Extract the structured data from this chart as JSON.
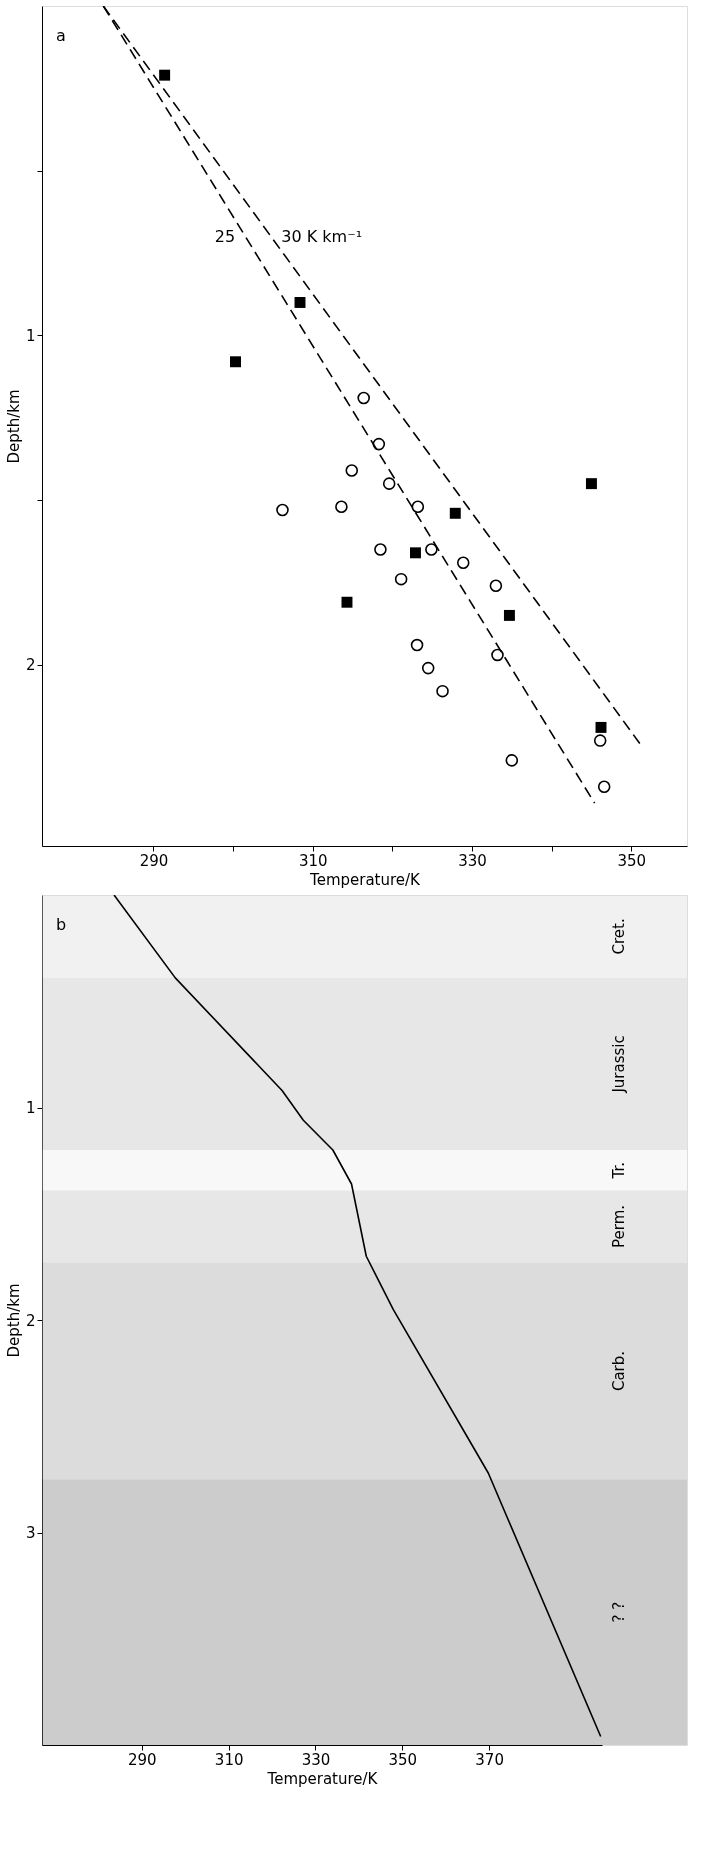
{
  "chart_data": [
    {
      "type": "scatter",
      "xlabel": "Temperature/K",
      "ylabel": "Depth/km",
      "xlim": [
        276,
        357
      ],
      "ylim": [
        2.55,
        0
      ],
      "xticks": [
        290,
        {
          "value": 300,
          "label": null
        },
        310,
        {
          "value": 320,
          "label": null
        },
        330,
        {
          "value": 340,
          "label": null
        },
        350
      ],
      "yticks": [
        {
          "value": 0.5,
          "label": null
        },
        1,
        {
          "value": 1.5,
          "label": null
        },
        2
      ],
      "grid": false,
      "legend": false,
      "annotations": [
        "a",
        {
          "text": "25",
          "x": 301.5,
          "y": 0.7
        },
        {
          "text": "30 K km⁻¹",
          "x": 304.8,
          "y": 0.7
        }
      ],
      "series": [
        {
          "marker": "square",
          "color": "#000000",
          "x": [
            291.4,
            308.4,
            300.3,
            345.0,
            327.9,
            322.9,
            314.3,
            334.7,
            346.2
          ],
          "values": [
            0.21,
            0.9,
            1.08,
            1.45,
            1.54,
            1.66,
            1.81,
            1.85,
            2.19
          ]
        },
        {
          "marker": "circle",
          "color": "#000000",
          "x": [
            316.4,
            318.3,
            314.9,
            319.6,
            306.2,
            313.6,
            323.2,
            318.5,
            324.9,
            328.9,
            321.1,
            333.0,
            323.1,
            333.2,
            324.5,
            326.3,
            346.1,
            335.0,
            346.6
          ],
          "values": [
            1.19,
            1.33,
            1.41,
            1.45,
            1.53,
            1.52,
            1.52,
            1.65,
            1.65,
            1.69,
            1.74,
            1.76,
            1.94,
            1.97,
            2.01,
            2.08,
            2.23,
            2.29,
            2.37
          ]
        },
        {
          "type": "line",
          "line_style": "dashed",
          "color": "#000000",
          "x": [
            283.7,
            345.4
          ],
          "values": [
            0,
            2.42
          ]
        },
        {
          "type": "line",
          "line_style": "dashed",
          "color": "#000000",
          "x": [
            283.7,
            351.1
          ],
          "values": [
            0,
            2.24
          ]
        }
      ]
    },
    {
      "type": "line",
      "xlabel": "Temperature/K",
      "ylabel": "Depth/km",
      "xlim": [
        267,
        396
      ],
      "ylim": [
        4,
        0
      ],
      "xticks": [
        290,
        310,
        330,
        350,
        370
      ],
      "yticks": [
        1,
        2,
        3
      ],
      "grid": false,
      "legend": false,
      "annotations": [
        "b"
      ],
      "series": [
        {
          "line_style": "solid",
          "color": "#000000",
          "x": [
            283.6,
            297.7,
            322.3,
            327.2,
            334.0,
            338.3,
            341.7,
            347.9,
            369.8,
            395.7
          ],
          "values": [
            0,
            0.39,
            0.92,
            1.06,
            1.2,
            1.36,
            1.7,
            1.95,
            2.72,
            3.96
          ]
        }
      ],
      "bands": [
        {
          "axis": "y",
          "from": 0,
          "to": 0.39,
          "label": "Cret.",
          "color": "#dcdcdc"
        },
        {
          "axis": "y",
          "from": 0.39,
          "to": 1.2,
          "label": "Jurassic",
          "color": "#c4c4c4"
        },
        {
          "axis": "y",
          "from": 1.2,
          "to": 1.39,
          "label": "Tr.",
          "color": "#eeeeee"
        },
        {
          "axis": "y",
          "from": 1.39,
          "to": 1.73,
          "label": "Perm.",
          "color": "#c4c4c4"
        },
        {
          "axis": "y",
          "from": 1.73,
          "to": 2.75,
          "label": "Carb.",
          "color": "#a8a8a8"
        },
        {
          "axis": "y",
          "from": 2.75,
          "to": 4,
          "label": "? ?",
          "color": "#808080"
        }
      ]
    }
  ]
}
